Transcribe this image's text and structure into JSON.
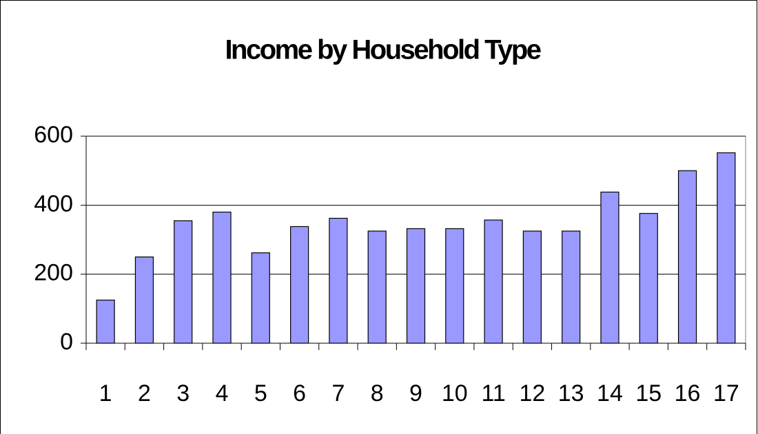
{
  "chart_data": {
    "type": "bar",
    "title": "Income by Household Type",
    "categories": [
      "1",
      "2",
      "3",
      "4",
      "5",
      "6",
      "7",
      "8",
      "9",
      "10",
      "11",
      "12",
      "13",
      "14",
      "15",
      "16",
      "17"
    ],
    "values": [
      125,
      250,
      355,
      380,
      262,
      338,
      362,
      325,
      332,
      332,
      357,
      325,
      325,
      438,
      376,
      500,
      552
    ],
    "color": "#9999ff",
    "ylim": [
      0,
      600
    ],
    "yticks": [
      0,
      200,
      400,
      600
    ],
    "grid": true
  }
}
